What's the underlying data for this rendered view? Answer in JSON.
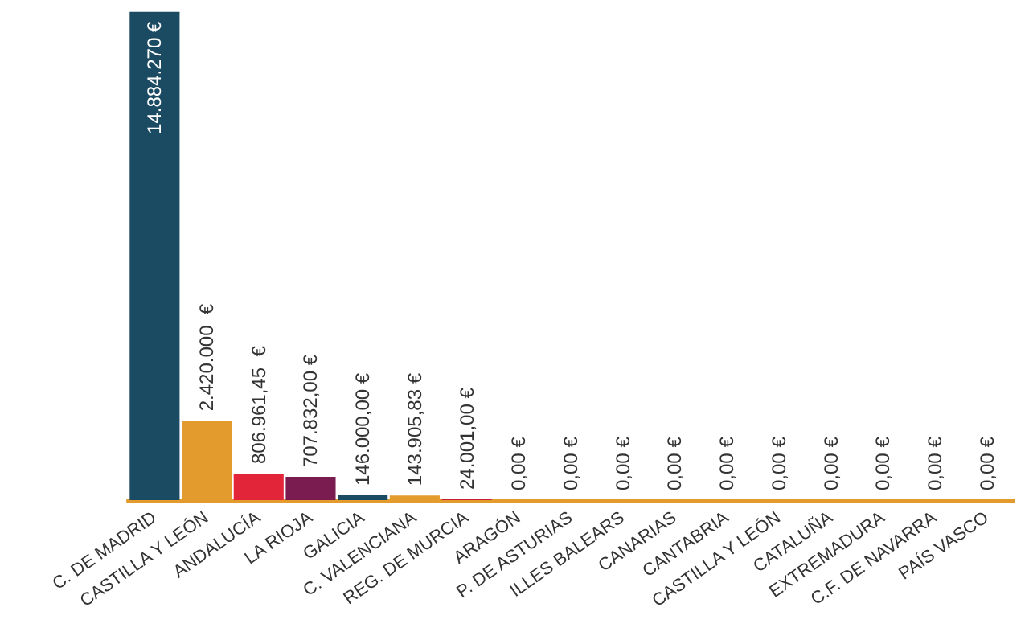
{
  "chart_data": {
    "type": "bar",
    "categories": [
      "C. DE MADRID",
      "CASTILLA Y LEÓN",
      "ANDALUCÍA",
      "LA RIOJA",
      "GALICIA",
      "C. VALENCIANA",
      "REG. DE MURCIA",
      "ARAGÓN",
      "P. DE ASTURIAS",
      "ILLES BALEARS",
      "CANARIAS",
      "CANTABRIA",
      "CASTILLA Y LEÓN",
      "CATALUÑA",
      "EXTREMADURA",
      "C.F. DE NAVARRA",
      "PAÍS VASCO"
    ],
    "values": [
      14884270,
      2420000,
      806961.45,
      707832,
      146000,
      143905.83,
      24001,
      0,
      0,
      0,
      0,
      0,
      0,
      0,
      0,
      0,
      0
    ],
    "value_labels": [
      "14.884.270 €",
      "2.420.000  €",
      "806.961,45  €",
      "707.832,00 €",
      "146.000,00 €",
      "143.905,83 €",
      "24.001,00 €",
      "0,00 €",
      "0,00 €",
      "0,00 €",
      "0,00 €",
      "0,00 €",
      "0,00 €",
      "0,00 €",
      "0,00 €",
      "0,00 €",
      "0,00 €"
    ],
    "colors": [
      "#1b4a63",
      "#e39b2d",
      "#e3253a",
      "#7b1c50",
      "#1b4a63",
      "#e39b2d",
      "#c81e30",
      "#1b4a63",
      "#e39b2d",
      "#c81e30",
      "#7b1c50",
      "#1b4a63",
      "#e39b2d",
      "#c81e30",
      "#7b1c50",
      "#1b4a63",
      "#e39b2d"
    ]
  }
}
